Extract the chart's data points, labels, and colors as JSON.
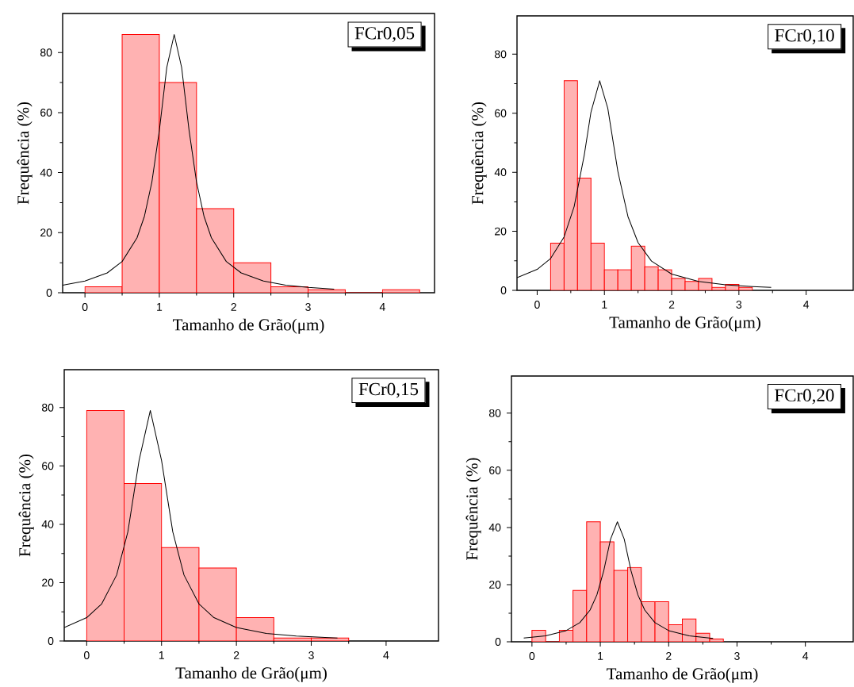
{
  "chart_data": [
    {
      "type": "histogram",
      "xlabel": "Tamanho de Grão(μm)",
      "ylabel": "Frequência (%)",
      "annotations": [
        "FCr0,05"
      ],
      "xlim": [
        -0.3,
        4.7
      ],
      "ylim": [
        0,
        93
      ],
      "xticks": [
        0,
        1,
        2,
        3,
        4
      ],
      "yticks": [
        0,
        20,
        40,
        60,
        80
      ],
      "series": [
        {
          "type": "histogram",
          "color": "#ff0000",
          "bins": [
            0,
            0.5,
            1,
            1.5,
            2,
            2.5,
            3,
            3.5,
            4,
            4.5
          ],
          "values": [
            2,
            86,
            70,
            28,
            10,
            2,
            1,
            0,
            1
          ]
        },
        {
          "type": "line",
          "color": "#000000",
          "x": [
            -0.3,
            0,
            0.3,
            0.5,
            0.7,
            0.8,
            0.9,
            1.0,
            1.1,
            1.2,
            1.3,
            1.4,
            1.5,
            1.6,
            1.7,
            1.9,
            2.1,
            2.4,
            2.7,
            3.0,
            3.35
          ],
          "values": [
            2.5,
            3.9,
            6.6,
            10.4,
            18.3,
            25.5,
            36.9,
            54,
            75,
            86,
            75,
            54,
            36.9,
            25.5,
            18.3,
            10.4,
            6.6,
            3.9,
            2.5,
            1.8,
            1.2
          ]
        }
      ]
    },
    {
      "type": "histogram",
      "xlabel": "Tamanho de Grão(μm)",
      "ylabel": "Frequência (%)",
      "annotations": [
        "FCr0,10"
      ],
      "xlim": [
        -0.3,
        4.7
      ],
      "ylim": [
        0,
        93
      ],
      "xticks": [
        0,
        1,
        2,
        3,
        4
      ],
      "yticks": [
        0,
        20,
        40,
        60,
        80
      ],
      "series": [
        {
          "type": "histogram",
          "color": "#ff0000",
          "bins": [
            0.2,
            0.4,
            0.6,
            0.8,
            1.0,
            1.2,
            1.4,
            1.6,
            1.8,
            2.0,
            2.2,
            2.4,
            2.6,
            2.8,
            3.0,
            3.2
          ],
          "values": [
            16,
            71,
            38,
            16,
            7,
            7,
            15,
            8,
            7,
            4,
            3,
            4,
            1,
            2,
            1
          ]
        },
        {
          "type": "line",
          "color": "#000000",
          "x": [
            -0.3,
            0,
            0.2,
            0.4,
            0.55,
            0.7,
            0.8,
            0.93,
            1.05,
            1.2,
            1.35,
            1.5,
            1.7,
            2.0,
            2.4,
            2.8,
            3.2,
            3.48
          ],
          "values": [
            4.3,
            7.1,
            10.8,
            18.1,
            28.4,
            45.8,
            60.4,
            71,
            61.7,
            40.3,
            25,
            16.2,
            9.9,
            5.5,
            3.0,
            1.9,
            1.3,
            1.0
          ]
        }
      ]
    },
    {
      "type": "histogram",
      "xlabel": "Tamanho de Grão(μm)",
      "ylabel": "Frequência (%)",
      "annotations": [
        "FCr0,15"
      ],
      "xlim": [
        -0.3,
        4.7
      ],
      "ylim": [
        0,
        93
      ],
      "xticks": [
        0,
        1,
        2,
        3,
        4
      ],
      "yticks": [
        0,
        20,
        40,
        60,
        80
      ],
      "series": [
        {
          "type": "histogram",
          "color": "#ff0000",
          "bins": [
            0,
            0.5,
            1,
            1.5,
            2,
            2.5,
            3,
            3.5
          ],
          "values": [
            79,
            54,
            32,
            25,
            8,
            1,
            1
          ]
        },
        {
          "type": "line",
          "color": "#000000",
          "x": [
            -0.3,
            0,
            0.2,
            0.4,
            0.55,
            0.7,
            0.85,
            1.0,
            1.15,
            1.3,
            1.5,
            1.7,
            2.0,
            2.4,
            2.8,
            3.35
          ],
          "values": [
            4.6,
            8.0,
            12.7,
            22.6,
            37.4,
            61.9,
            79,
            61.9,
            37.4,
            22.6,
            12.7,
            8.0,
            4.6,
            2.6,
            1.7,
            1.0
          ]
        }
      ]
    },
    {
      "type": "histogram",
      "xlabel": "Tamanho de Grão(μm)",
      "ylabel": "Frequência (%)",
      "annotations": [
        "FCr0,20"
      ],
      "xlim": [
        -0.3,
        4.7
      ],
      "ylim": [
        0,
        93
      ],
      "xticks": [
        0,
        1,
        2,
        3,
        4
      ],
      "yticks": [
        0,
        20,
        40,
        60,
        80
      ],
      "series": [
        {
          "type": "histogram",
          "color": "#ff0000",
          "bins": [
            0,
            0.2,
            0.4,
            0.6,
            0.8,
            1.0,
            1.2,
            1.4,
            1.6,
            1.8,
            2.0,
            2.2,
            2.4,
            2.6,
            2.8
          ],
          "values": [
            4,
            0,
            4,
            18,
            42,
            35,
            25,
            26,
            14,
            14,
            6,
            8,
            3,
            1
          ]
        },
        {
          "type": "line",
          "color": "#000000",
          "x": [
            -0.12,
            0.2,
            0.5,
            0.7,
            0.85,
            0.95,
            1.05,
            1.15,
            1.25,
            1.35,
            1.45,
            1.55,
            1.65,
            1.8,
            2.0,
            2.3,
            2.65
          ],
          "values": [
            1.3,
            2.1,
            3.9,
            6.7,
            11.1,
            16.4,
            24.8,
            35.9,
            42,
            35.9,
            24.8,
            16.4,
            11.1,
            6.7,
            3.9,
            2.1,
            1.2
          ]
        }
      ]
    }
  ]
}
